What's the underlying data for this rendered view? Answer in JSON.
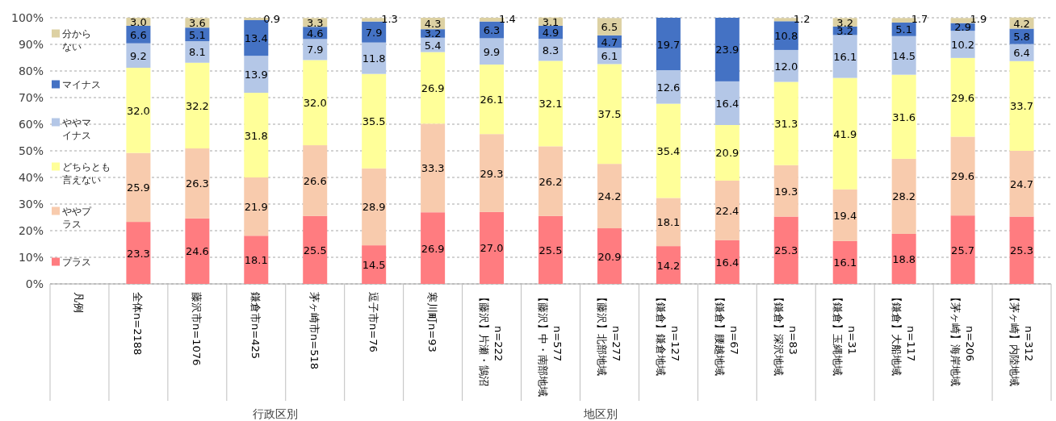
{
  "chart_data": {
    "type": "bar",
    "stacked": true,
    "legend": "left",
    "legend_title": "凡例",
    "grid": "y",
    "ylim": [
      0,
      100
    ],
    "yticks": [
      {
        "value": 0,
        "label": "0%"
      },
      {
        "value": 10,
        "label": "10%"
      },
      {
        "value": 20,
        "label": "20%"
      },
      {
        "value": 30,
        "label": "30%"
      },
      {
        "value": 40,
        "label": "40%"
      },
      {
        "value": 50,
        "label": "50%"
      },
      {
        "value": 60,
        "label": "60%"
      },
      {
        "value": 70,
        "label": "70%"
      },
      {
        "value": 80,
        "label": "80%"
      },
      {
        "value": 90,
        "label": "90%"
      },
      {
        "value": 100,
        "label": "100%"
      }
    ],
    "categories": [
      "全体n=2188",
      "藤沢市n=1076",
      "鎌倉市n=425",
      "茅ヶ崎市n=518",
      "逗子市n=76",
      "寒川町n=93",
      "【藤沢】片瀬・鵠沼\nn=222",
      "【藤沢】中・南部地域\nn=577",
      "【藤沢】北部地域\nn=277",
      "【鎌倉】鎌倉地域\nn=127",
      "【鎌倉】腰越地域\nn=67",
      "【鎌倉】深沢地域\nn=83",
      "【鎌倉】玉縄地域\nn=31",
      "【鎌倉】大船地域\nn=117",
      "【茅ヶ崎】海岸地域\nn=206",
      "【茅ヶ崎】内陸地域\nn=312"
    ],
    "annotations": [
      "行政区別",
      "地区別"
    ],
    "series": [
      {
        "name": "プラス",
        "color": "#ff7c80",
        "values": [
          23.3,
          24.6,
          18.1,
          25.5,
          14.5,
          26.9,
          27.0,
          25.5,
          20.9,
          14.2,
          16.4,
          25.3,
          16.1,
          18.8,
          25.7,
          25.3
        ],
        "value_labels": [
          "23.3",
          "24.6",
          "18.1",
          "25.5",
          "14.5",
          "26.9",
          "27.0",
          "25.5",
          "20.9",
          "14.2",
          "16.4",
          "25.3",
          "16.1",
          "18.8",
          "25.7",
          "25.3"
        ]
      },
      {
        "name": "ややプラス",
        "color": "#f8cbad",
        "values": [
          25.9,
          26.3,
          21.9,
          26.6,
          28.9,
          33.3,
          29.3,
          26.2,
          24.2,
          18.1,
          22.4,
          19.3,
          19.4,
          28.2,
          29.6,
          24.7
        ],
        "value_labels": [
          "25.9",
          "26.3",
          "21.9",
          "26.6",
          "28.9",
          "33.3",
          "29.3",
          "26.2",
          "24.2",
          "18.1",
          "22.4",
          "19.3",
          "19.4",
          "28.2",
          "29.6",
          "24.7"
        ]
      },
      {
        "name": "どちらとも言えない",
        "color": "#ffff99",
        "values": [
          32.0,
          32.2,
          31.8,
          32.0,
          35.5,
          26.9,
          26.1,
          32.1,
          37.5,
          35.4,
          20.9,
          31.3,
          41.9,
          31.6,
          29.6,
          33.7
        ],
        "value_labels": [
          "32.0",
          "32.2",
          "31.8",
          "32.0",
          "35.5",
          "26.9",
          "26.1",
          "32.1",
          "37.5",
          "35.4",
          "20.9",
          "31.3",
          "41.9",
          "31.6",
          "29.6",
          "33.7"
        ]
      },
      {
        "name": "ややマイナス",
        "color": "#b4c7e7",
        "values": [
          9.2,
          8.1,
          13.9,
          7.9,
          11.8,
          5.4,
          9.9,
          8.3,
          6.1,
          12.6,
          16.4,
          12.0,
          16.1,
          14.5,
          10.2,
          6.4
        ],
        "value_labels": [
          "9.2",
          "8.1",
          "13.9",
          "7.9",
          "11.8",
          "5.4",
          "9.9",
          "8.3",
          "6.1",
          "12.6",
          "16.4",
          "12.0",
          "16.1",
          "14.5",
          "10.2",
          "6.4"
        ]
      },
      {
        "name": "マイナス",
        "color": "#4472c4",
        "values": [
          6.6,
          5.1,
          13.4,
          4.6,
          7.9,
          3.2,
          6.3,
          4.9,
          4.7,
          19.7,
          23.9,
          10.8,
          3.2,
          5.1,
          2.9,
          5.8
        ],
        "value_labels": [
          "6.6",
          "5.1",
          "13.4",
          "4.6",
          "7.9",
          "3.2",
          "6.3",
          "4.9",
          "4.7",
          "19.7",
          "23.9",
          "10.8",
          "3.2",
          "5.1",
          "2.9",
          "5.8"
        ]
      },
      {
        "name": "分からない",
        "color": "#ddd1a3",
        "values": [
          3.0,
          3.6,
          0.9,
          3.3,
          1.3,
          4.3,
          1.4,
          3.1,
          6.5,
          null,
          null,
          1.2,
          3.2,
          1.7,
          1.9,
          4.2
        ],
        "value_labels": [
          "3.0",
          "3.6",
          "0.9",
          "3.3",
          "1.3",
          "4.3",
          "1.4",
          "3.1",
          "6.5",
          null,
          null,
          "1.2",
          "3.2",
          "1.7",
          "1.9",
          "4.2"
        ]
      }
    ]
  }
}
